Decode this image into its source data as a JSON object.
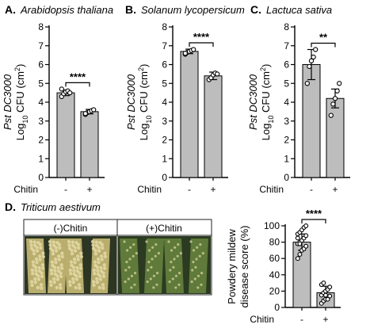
{
  "panels": {
    "A": {
      "letter": "A.",
      "species": "Arabidopsis thaliana"
    },
    "B": {
      "letter": "B.",
      "species": "Solanum lycopersicum"
    },
    "C": {
      "letter": "C.",
      "species": "Lactuca sativa"
    },
    "D": {
      "letter": "D.",
      "species": "Triticum aestivum",
      "photo_labels": [
        "(-)Chitin",
        "(+)Chitin"
      ]
    }
  },
  "shared": {
    "ylabel_line1": "Pst DC3000",
    "ylabel_line2_prefix": "Log",
    "ylabel_line2_sub": "10",
    "ylabel_line2_suffix": " CFU (cm",
    "ylabel_line2_sup": "2",
    "ylabel_line2_end": ")",
    "treatment_label": "Chitin",
    "categories": [
      "-",
      "+"
    ]
  },
  "chart_data": [
    {
      "panel": "A",
      "type": "bar",
      "title": "Arabidopsis thaliana",
      "xlabel": "Chitin",
      "ylabel": "Pst DC3000 Log10 CFU (cm2)",
      "categories": [
        "-",
        "+"
      ],
      "values": [
        4.5,
        3.5
      ],
      "errors": [
        0.15,
        0.12
      ],
      "points": [
        [
          4.3,
          4.45,
          4.55,
          4.6,
          4.5,
          4.7
        ],
        [
          3.35,
          3.45,
          3.5,
          3.55,
          3.6,
          3.4
        ]
      ],
      "ylim": [
        0,
        8
      ],
      "yticks": [
        0,
        1,
        2,
        3,
        4,
        5,
        6,
        7,
        8
      ],
      "significance": "****"
    },
    {
      "panel": "B",
      "type": "bar",
      "title": "Solanum lycopersicum",
      "xlabel": "Chitin",
      "ylabel": "Pst DC3000 Log10 CFU (cm2)",
      "categories": [
        "-",
        "+"
      ],
      "values": [
        6.7,
        5.4
      ],
      "errors": [
        0.12,
        0.2
      ],
      "points": [
        [
          6.55,
          6.65,
          6.7,
          6.75,
          6.8,
          6.6
        ],
        [
          5.2,
          5.3,
          5.45,
          5.55,
          5.5
        ]
      ],
      "ylim": [
        0,
        8
      ],
      "yticks": [
        0,
        1,
        2,
        3,
        4,
        5,
        6,
        7,
        8
      ],
      "significance": "****"
    },
    {
      "panel": "C",
      "type": "bar",
      "title": "Lactuca sativa",
      "xlabel": "Chitin",
      "ylabel": "Pst DC3000 Log10 CFU (cm2)",
      "categories": [
        "-",
        "+"
      ],
      "values": [
        6.0,
        4.2
      ],
      "errors": [
        0.8,
        0.5
      ],
      "points": [
        [
          5.0,
          5.9,
          6.2,
          6.4,
          6.8
        ],
        [
          3.3,
          3.9,
          4.2,
          4.6,
          5.0
        ]
      ],
      "ylim": [
        0,
        8
      ],
      "yticks": [
        0,
        1,
        2,
        3,
        4,
        5,
        6,
        7,
        8
      ],
      "significance": "**"
    },
    {
      "panel": "D",
      "type": "bar",
      "title": "",
      "xlabel": "Chitin",
      "ylabel": "Powdery mildew disease score (%)",
      "ylabel_lines": [
        "Powdery mildew",
        "disease score (%)"
      ],
      "categories": [
        "-",
        "+"
      ],
      "values": [
        80,
        18
      ],
      "errors": [
        10,
        8
      ],
      "points": [
        [
          60,
          65,
          70,
          72,
          75,
          78,
          80,
          82,
          85,
          88,
          90,
          92,
          95,
          98,
          100,
          85,
          78
        ],
        [
          5,
          8,
          10,
          12,
          14,
          15,
          18,
          20,
          22,
          25,
          28,
          30,
          15,
          10
        ]
      ],
      "ylim": [
        0,
        100
      ],
      "yticks": [
        0,
        20,
        40,
        60,
        80,
        100
      ],
      "significance": "****"
    }
  ]
}
